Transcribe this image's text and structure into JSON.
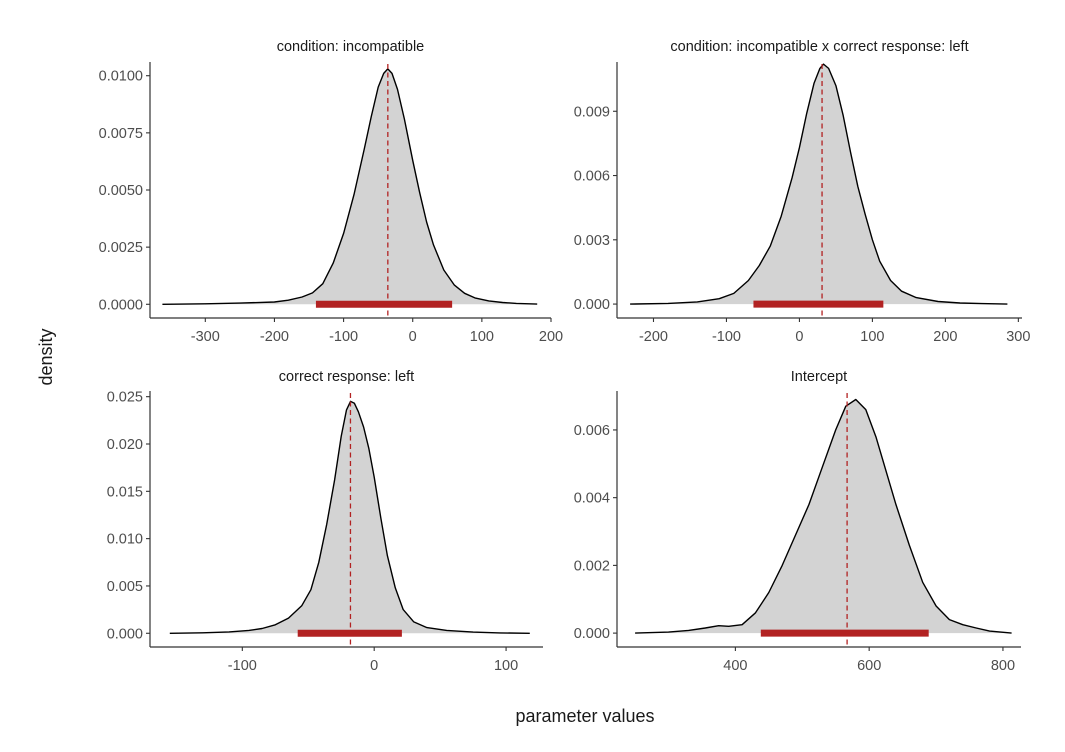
{
  "figure": {
    "xlabel": "parameter values",
    "ylabel": "density",
    "colors": {
      "fill": "#d3d3d3",
      "line": "#000000",
      "ci": "#b22222",
      "median": "#b22222",
      "axis": "#333333",
      "tick_text": "#4d4d4d"
    }
  },
  "chart_data": [
    {
      "type": "area",
      "title": "condition: incompatible",
      "xlim": [
        -380,
        200
      ],
      "ylim": [
        -0.0006,
        0.0106
      ],
      "xticks": [
        -300,
        -200,
        -100,
        0,
        100,
        200
      ],
      "yticks": [
        0,
        0.0025,
        0.005,
        0.0075,
        0.01
      ],
      "ytick_labels": [
        "0.0000",
        "0.0025",
        "0.0050",
        "0.0075",
        "0.0100"
      ],
      "median": -36,
      "ci": [
        -140,
        57
      ],
      "density": {
        "x": [
          -362,
          -300,
          -250,
          -200,
          -180,
          -160,
          -145,
          -130,
          -115,
          -100,
          -85,
          -70,
          -60,
          -50,
          -42,
          -36,
          -30,
          -22,
          -12,
          0,
          10,
          20,
          30,
          45,
          60,
          75,
          90,
          110,
          130,
          150,
          180
        ],
        "y": [
          0,
          2e-05,
          5e-05,
          0.0001,
          0.00018,
          0.00032,
          0.0005,
          0.0009,
          0.0018,
          0.0031,
          0.0048,
          0.0068,
          0.0082,
          0.0095,
          0.0101,
          0.0103,
          0.0101,
          0.0094,
          0.0081,
          0.0063,
          0.0049,
          0.0036,
          0.0026,
          0.0015,
          0.00085,
          0.00048,
          0.00028,
          0.00015,
          8e-05,
          4e-05,
          1e-05
        ]
      }
    },
    {
      "type": "area",
      "title": "condition: incompatible x correct response: left",
      "xlim": [
        -250,
        305
      ],
      "ylim": [
        -0.00065,
        0.0113
      ],
      "xticks": [
        -200,
        -100,
        0,
        100,
        200,
        300
      ],
      "yticks": [
        0,
        0.003,
        0.006,
        0.009
      ],
      "ytick_labels": [
        "0.000",
        "0.003",
        "0.006",
        "0.009"
      ],
      "median": 31,
      "ci": [
        -63,
        115
      ],
      "density": {
        "x": [
          -232,
          -180,
          -140,
          -110,
          -90,
          -70,
          -55,
          -40,
          -25,
          -10,
          0,
          10,
          20,
          28,
          33,
          40,
          50,
          60,
          70,
          80,
          90,
          100,
          110,
          125,
          140,
          160,
          190,
          220,
          250,
          285
        ],
        "y": [
          0,
          3e-05,
          0.0001,
          0.00025,
          0.0005,
          0.0011,
          0.0018,
          0.0027,
          0.0041,
          0.0059,
          0.0073,
          0.0089,
          0.0103,
          0.011,
          0.0112,
          0.011,
          0.0102,
          0.0088,
          0.0071,
          0.0055,
          0.0042,
          0.003,
          0.002,
          0.0011,
          0.0006,
          0.0003,
          0.00012,
          5e-05,
          2e-05,
          0
        ]
      }
    },
    {
      "type": "area",
      "title": "correct response: left",
      "xlim": [
        -170,
        128
      ],
      "ylim": [
        -0.00145,
        0.0256
      ],
      "xticks": [
        -100,
        0,
        100
      ],
      "yticks": [
        0,
        0.005,
        0.01,
        0.015,
        0.02,
        0.025
      ],
      "ytick_labels": [
        "0.000",
        "0.005",
        "0.010",
        "0.015",
        "0.020",
        "0.025"
      ],
      "median": -18,
      "ci": [
        -58,
        21
      ],
      "density": {
        "x": [
          -155,
          -130,
          -110,
          -95,
          -85,
          -75,
          -65,
          -55,
          -48,
          -42,
          -36,
          -30,
          -25,
          -21,
          -18,
          -15,
          -12,
          -8,
          -4,
          0,
          5,
          10,
          16,
          22,
          30,
          40,
          55,
          75,
          95,
          118
        ],
        "y": [
          0,
          5e-05,
          0.00015,
          0.0003,
          0.0005,
          0.0009,
          0.0016,
          0.0029,
          0.0046,
          0.0075,
          0.0115,
          0.0162,
          0.0208,
          0.0236,
          0.0245,
          0.0243,
          0.0234,
          0.0218,
          0.0195,
          0.0165,
          0.0122,
          0.0082,
          0.0048,
          0.0025,
          0.0012,
          0.0006,
          0.0003,
          0.00012,
          4e-05,
          0
        ]
      }
    },
    {
      "type": "area",
      "title": "Intercept",
      "xlim": [
        223,
        827
      ],
      "ylim": [
        -0.00041,
        0.00715
      ],
      "xticks": [
        400,
        600,
        800
      ],
      "yticks": [
        0,
        0.002,
        0.004,
        0.006
      ],
      "ytick_labels": [
        "0.000",
        "0.002",
        "0.004",
        "0.006"
      ],
      "median": 567,
      "ci": [
        438,
        689
      ],
      "density": {
        "x": [
          250,
          300,
          330,
          355,
          375,
          390,
          410,
          430,
          450,
          470,
          490,
          510,
          530,
          550,
          565,
          580,
          595,
          610,
          625,
          640,
          660,
          680,
          700,
          720,
          740,
          760,
          780,
          813
        ],
        "y": [
          0,
          3e-05,
          8e-05,
          0.00015,
          0.00022,
          0.0002,
          0.00025,
          0.0006,
          0.0012,
          0.002,
          0.0029,
          0.0038,
          0.0049,
          0.006,
          0.0067,
          0.0069,
          0.0066,
          0.0058,
          0.0048,
          0.0038,
          0.0026,
          0.0015,
          0.0008,
          0.0004,
          0.00025,
          0.00015,
          6e-05,
          0
        ]
      }
    }
  ]
}
